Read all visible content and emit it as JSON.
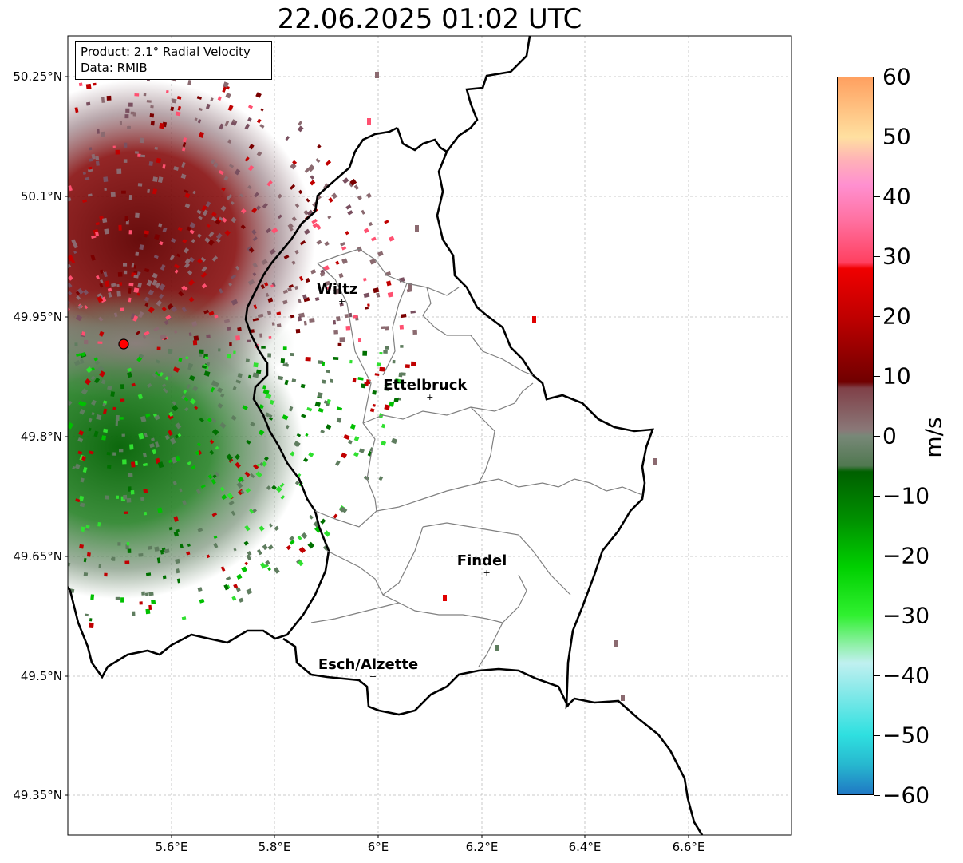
{
  "title": "22.06.2025 01:02 UTC",
  "info": {
    "product": "Product: 2.1° Radial Velocity",
    "source": "Data: RMIB"
  },
  "lat_ticks": [
    "50.25°N",
    "50.1°N",
    "49.95°N",
    "49.8°N",
    "49.65°N",
    "49.5°N",
    "49.35°N"
  ],
  "lon_ticks": [
    "5.6°E",
    "5.8°E",
    "6°E",
    "6.2°E",
    "6.4°E",
    "6.6°E"
  ],
  "cities": [
    {
      "name": "Wiltz",
      "lon": 5.93,
      "lat": 49.97
    },
    {
      "name": "Ettelbruck",
      "lon": 6.1,
      "lat": 49.85
    },
    {
      "name": "Findel",
      "lon": 6.21,
      "lat": 49.63
    },
    {
      "name": "Esch/Alzette",
      "lon": 5.99,
      "lat": 49.5
    }
  ],
  "radar_site": {
    "lon": 5.505,
    "lat": 49.915
  },
  "colorbar": {
    "unit": "m/s",
    "min": -60,
    "max": 60,
    "ticks": [
      "60",
      "50",
      "40",
      "30",
      "20",
      "10",
      "0",
      "−10",
      "−20",
      "−30",
      "−40",
      "−50",
      "−60"
    ],
    "stops": [
      {
        "v": -60,
        "c": "#1f78c4"
      },
      {
        "v": -55,
        "c": "#27b8cf"
      },
      {
        "v": -50,
        "c": "#2fe0e0"
      },
      {
        "v": -42,
        "c": "#90eaea"
      },
      {
        "v": -38,
        "c": "#c0f0f0"
      },
      {
        "v": -35,
        "c": "#90f0a8"
      },
      {
        "v": -30,
        "c": "#30f030"
      },
      {
        "v": -22,
        "c": "#00d000"
      },
      {
        "v": -14,
        "c": "#009000"
      },
      {
        "v": -6,
        "c": "#006000"
      },
      {
        "v": -5,
        "c": "#507850"
      },
      {
        "v": 0,
        "c": "#788878"
      },
      {
        "v": 1,
        "c": "#8a7878"
      },
      {
        "v": 8,
        "c": "#804048"
      },
      {
        "v": 9,
        "c": "#700000"
      },
      {
        "v": 20,
        "c": "#c00000"
      },
      {
        "v": 28,
        "c": "#f00000"
      },
      {
        "v": 29,
        "c": "#ff4060"
      },
      {
        "v": 36,
        "c": "#ff70a0"
      },
      {
        "v": 42,
        "c": "#ff90d0"
      },
      {
        "v": 46,
        "c": "#ffb0b8"
      },
      {
        "v": 50,
        "c": "#ffe0a0"
      },
      {
        "v": 55,
        "c": "#ffc080"
      },
      {
        "v": 60,
        "c": "#ffa060"
      }
    ]
  }
}
